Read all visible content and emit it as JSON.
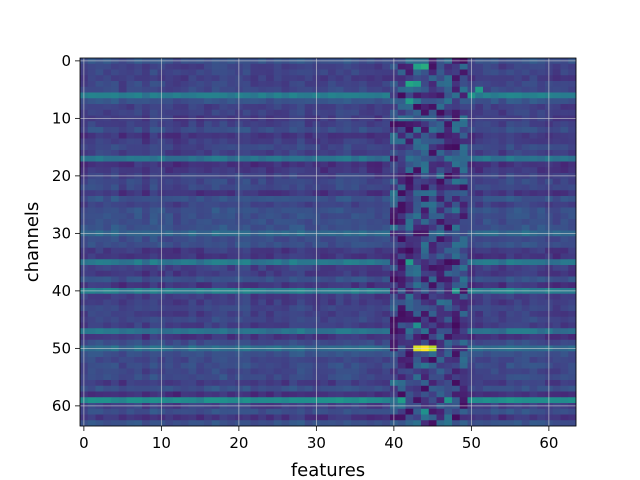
{
  "chart_data": {
    "type": "heatmap",
    "title": "",
    "xlabel": "features",
    "ylabel": "channels",
    "rows": 64,
    "cols": 64,
    "xlim": [
      -0.5,
      63.5
    ],
    "ylim": [
      63.5,
      -0.5
    ],
    "x_ticks": [
      0,
      10,
      20,
      30,
      40,
      50,
      60
    ],
    "y_ticks": [
      0,
      10,
      20,
      30,
      40,
      50,
      60
    ],
    "grid": true,
    "colormap": "viridis",
    "vmin": 0,
    "vmax": 1,
    "notable_cells": [
      {
        "row": 50,
        "col": 44,
        "value": 1.0
      },
      {
        "row": 50,
        "col": 43,
        "value": 0.95
      },
      {
        "row": 50,
        "col": 45,
        "value": 0.9
      },
      {
        "row": 1,
        "col": 44,
        "value": 0.62
      },
      {
        "row": 1,
        "col": 43,
        "value": 0.58
      },
      {
        "row": 4,
        "col": 42,
        "value": 0.6
      },
      {
        "row": 4,
        "col": 43,
        "value": 0.55
      },
      {
        "row": 5,
        "col": 51,
        "value": 0.55
      },
      {
        "row": 6,
        "col": 50,
        "value": 0.52
      },
      {
        "row": 7,
        "col": 42,
        "value": 0.55
      },
      {
        "row": 35,
        "col": 42,
        "value": 0.55
      },
      {
        "row": 40,
        "col": 48,
        "value": 0.52
      },
      {
        "row": 46,
        "col": 43,
        "value": 0.5
      },
      {
        "row": 59,
        "col": 41,
        "value": 0.55
      },
      {
        "row": 59,
        "col": 47,
        "value": 0.52
      },
      {
        "row": 61,
        "col": 44,
        "value": 0.5
      }
    ],
    "bright_rows": [
      {
        "row": 6,
        "value": 0.42
      },
      {
        "row": 17,
        "value": 0.38
      },
      {
        "row": 30,
        "value": 0.34
      },
      {
        "row": 35,
        "value": 0.4
      },
      {
        "row": 40,
        "value": 0.42
      },
      {
        "row": 47,
        "value": 0.38
      },
      {
        "row": 50,
        "value": 0.36
      },
      {
        "row": 59,
        "value": 0.48
      }
    ],
    "dark_column_band": [
      39.5,
      49.5
    ]
  }
}
